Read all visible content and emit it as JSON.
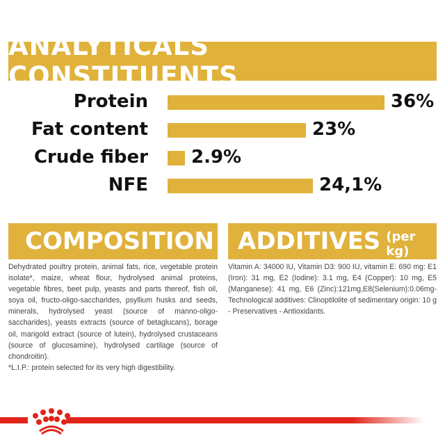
{
  "header": {
    "title": "ANALYTICALS CONSTITUENTS"
  },
  "chart_data": {
    "type": "bar",
    "orientation": "horizontal",
    "title": "ANALYTICALS CONSTITUENTS",
    "categories": [
      "Protein",
      "Fat content",
      "Crude fiber",
      "NFE"
    ],
    "values": [
      36,
      23,
      2.9,
      24.1
    ],
    "value_labels": [
      "36%",
      "23%",
      "2.9%",
      "24,1%"
    ],
    "xlim": [
      0,
      36
    ],
    "grid": false
  },
  "composition": {
    "title": "COMPOSITION",
    "text": "Dehydrated poultry protein, animal fats, rice, vegetable protein isolate*, maize, wheat flour, hydrolysed animal proteins, vegetable fibres, beet pulp, yeasts and parts thereof, fish oil, soya oil, fructo-oligo-saccharides, psyllium husks and seeds, minerals, hydrolysed yeast (source of manno-oligo-saccharides), yeasts extracts (source of betaglucans), borage oil, marigold extract (source of lutein), hydrolysed crustaceans (source of glucosamine), hydrolysed cartilage (source of chondroitin).",
    "footnote": "*L.I.P.: protein selected for its very high digestibility."
  },
  "additives": {
    "title": "ADDITIVES",
    "subtitle": "(per kg)",
    "text": "Vitamin A: 34000 IU, Vitamin D3: 900 IU, vitamin E: 690 mg: E1 (Iron): 31 mg, E2 (Iodine): 3.1 mg, E4 (Copper): 10 mg, E5 (Manganese): 41 mg, E6 (Zinc):121mg,E8(Selenium):0.06mg-Technological additives: Clinoptilolite of sedimentary origin: 10 g - Preservatives - Antioxidants."
  },
  "colors": {
    "accent": "#e0b23c",
    "brand_red": "#e1251b"
  },
  "logo": {
    "icon": "royal-canin-crown-icon"
  }
}
